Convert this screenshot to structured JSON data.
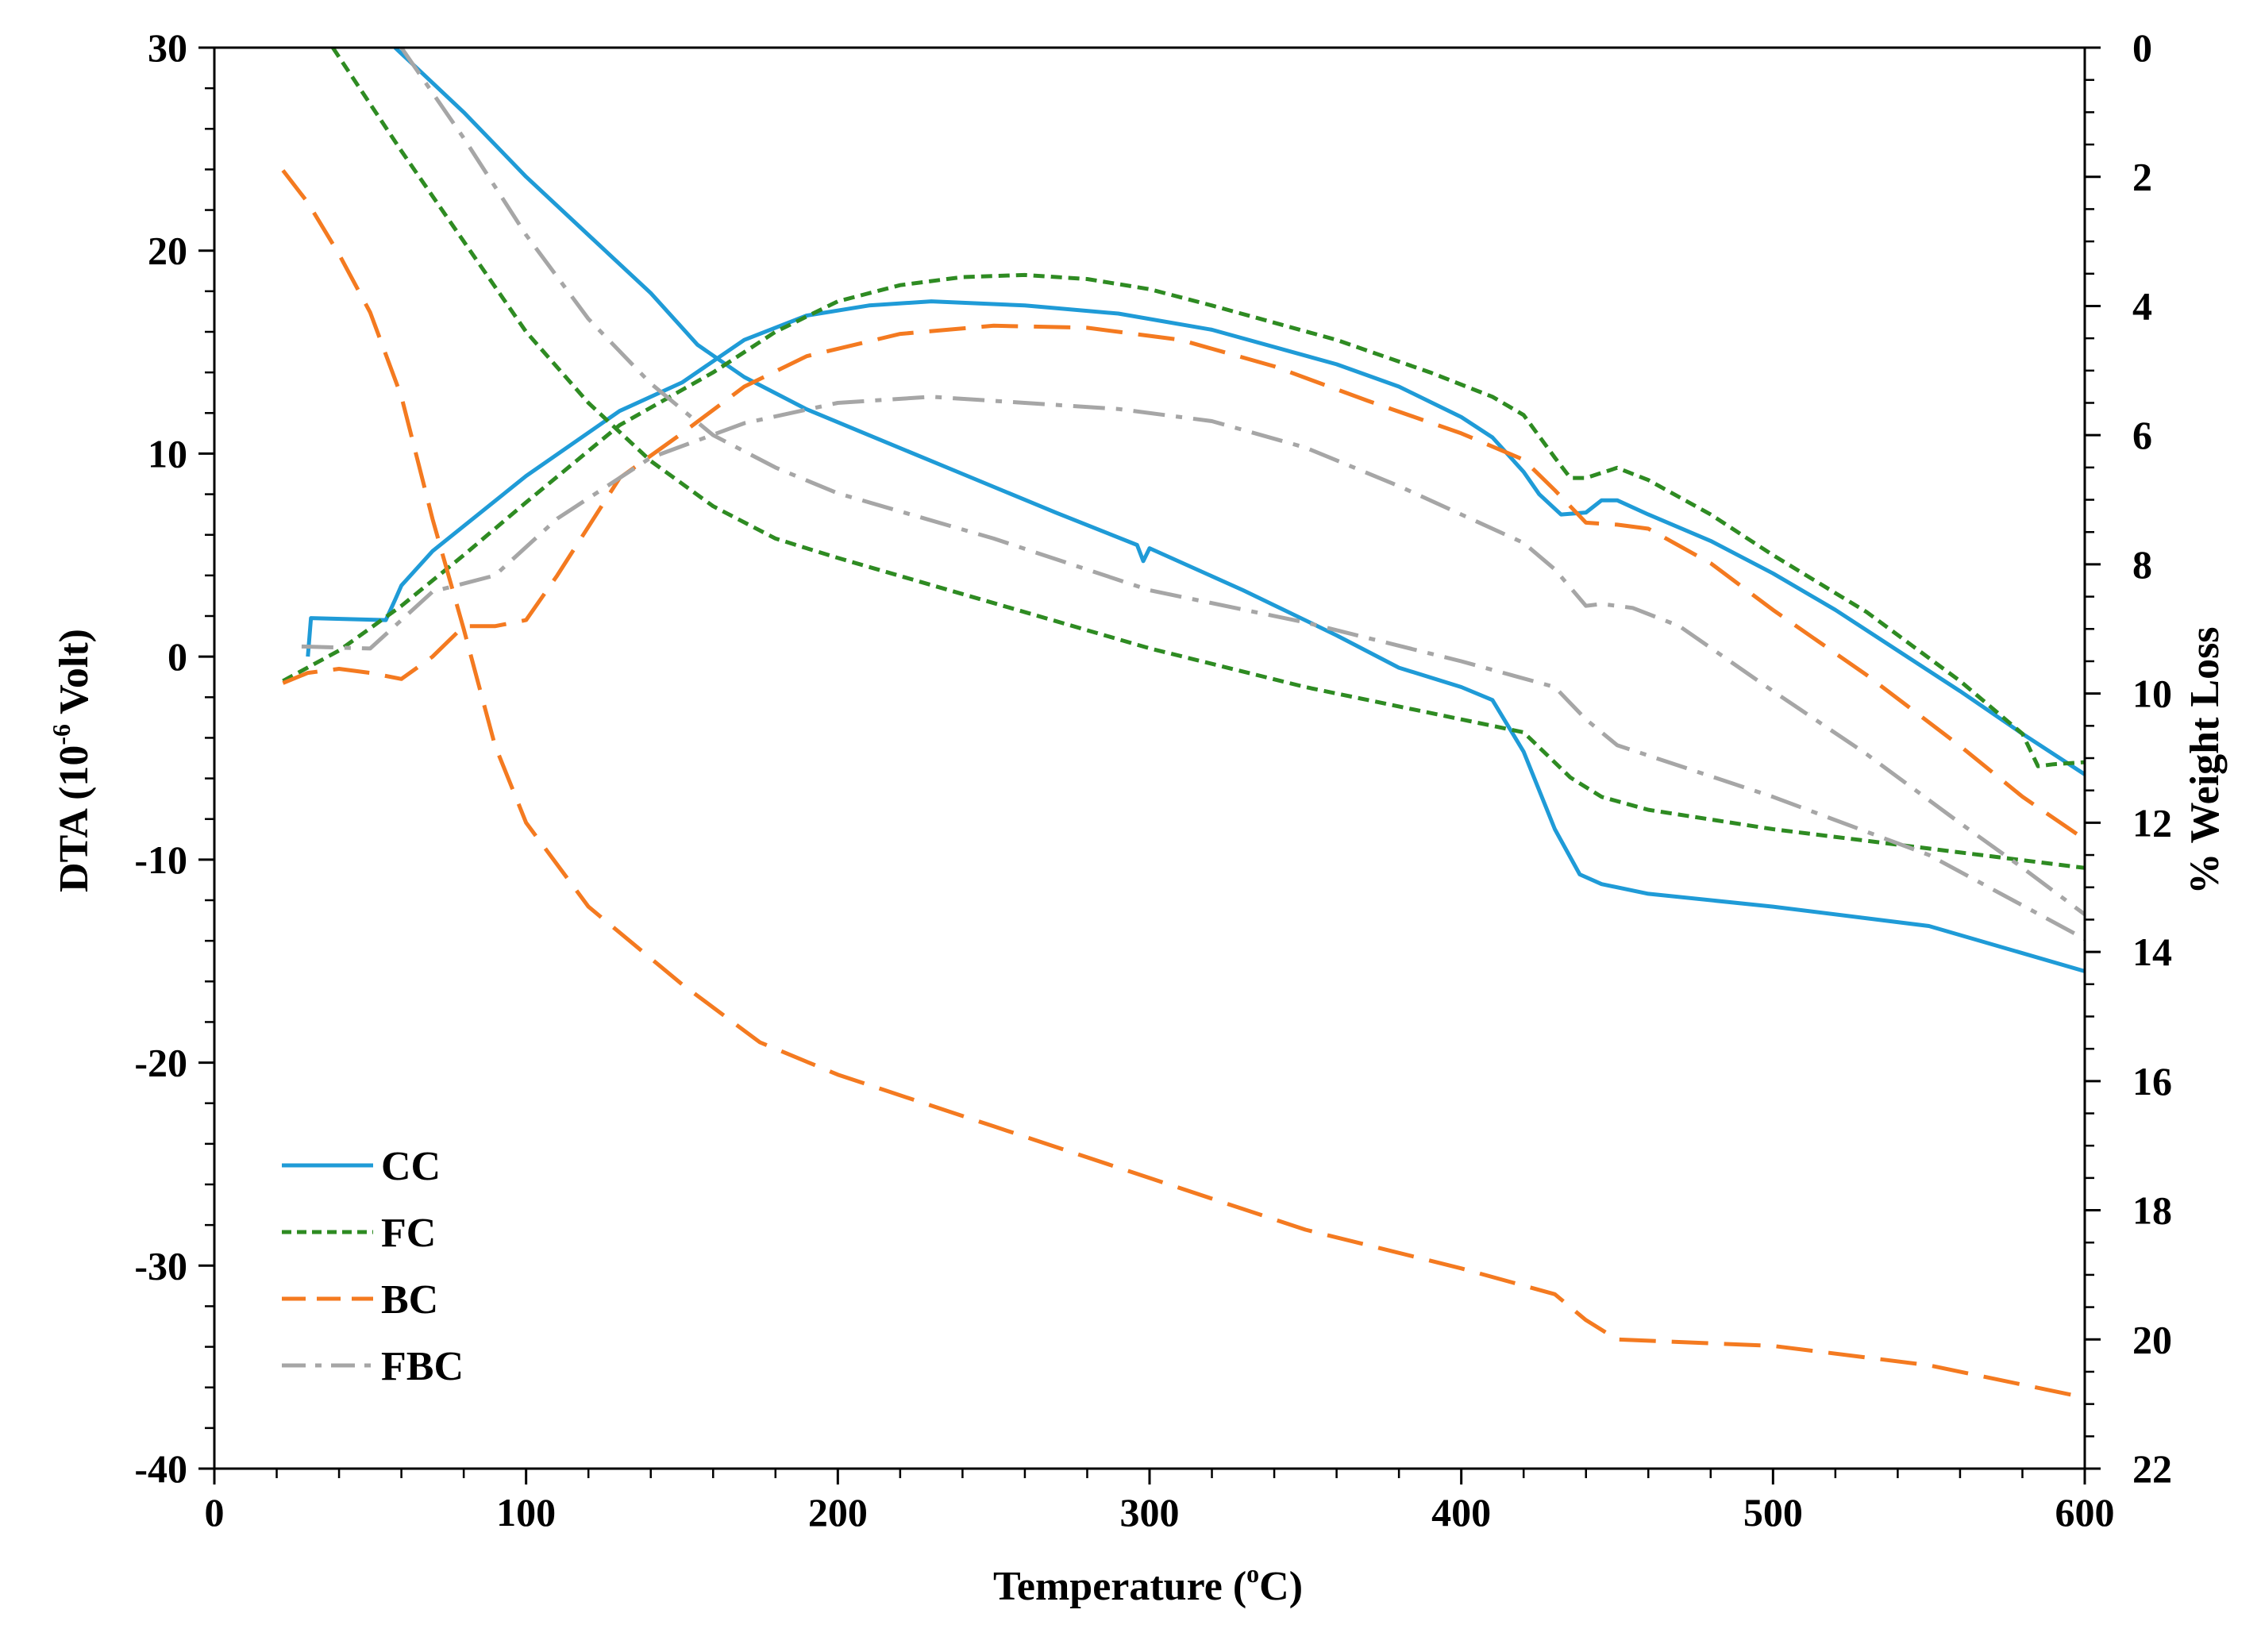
{
  "chart_data": {
    "type": "line",
    "title": "",
    "xlabel": "Temperature (°C)",
    "xlabel_parts": {
      "pre": "Temperature (",
      "sup": "o",
      "post": "C)"
    },
    "ylabel_left": "DTA (10⁻⁶ Volt)",
    "ylabel_left_parts": {
      "pre": "DTA (10",
      "sup": "-6",
      "post": " Volt)"
    },
    "ylabel_right": "% Weight Loss",
    "xlim": [
      0,
      600
    ],
    "ylim_left": [
      -40,
      30
    ],
    "ylim_right": [
      0,
      22
    ],
    "right_axis_inverted": true,
    "x_ticks": [
      "0",
      "100",
      "200",
      "300",
      "400",
      "500",
      "600"
    ],
    "y_left_ticks": [
      "-40",
      "-30",
      "-20",
      "-10",
      "0",
      "10",
      "20",
      "30"
    ],
    "y_right_ticks": [
      "0",
      "2",
      "4",
      "6",
      "8",
      "10",
      "12",
      "14",
      "16",
      "18",
      "20",
      "22"
    ],
    "legend_position": "bottom-left",
    "series": [
      {
        "name": "CC",
        "color": "#1f9bd7",
        "dash": "solid",
        "dta": [
          [
            30,
            0
          ],
          [
            31,
            1.9
          ],
          [
            55,
            1.8
          ],
          [
            58,
            2.8
          ],
          [
            60,
            3.5
          ],
          [
            70,
            5.2
          ],
          [
            100,
            8.9
          ],
          [
            130,
            12.1
          ],
          [
            150,
            13.5
          ],
          [
            170,
            15.6
          ],
          [
            190,
            16.8
          ],
          [
            210,
            17.3
          ],
          [
            230,
            17.5
          ],
          [
            260,
            17.3
          ],
          [
            290,
            16.9
          ],
          [
            320,
            16.1
          ],
          [
            360,
            14.4
          ],
          [
            380,
            13.3
          ],
          [
            400,
            11.8
          ],
          [
            410,
            10.8
          ],
          [
            420,
            9.1
          ],
          [
            425,
            8.0
          ],
          [
            432,
            7.0
          ],
          [
            440,
            7.1
          ],
          [
            445,
            7.7
          ],
          [
            450,
            7.7
          ],
          [
            460,
            7.0
          ],
          [
            480,
            5.7
          ],
          [
            500,
            4.1
          ],
          [
            520,
            2.3
          ],
          [
            540,
            0.3
          ],
          [
            560,
            -1.7
          ],
          [
            580,
            -3.8
          ],
          [
            600,
            -5.8
          ]
        ],
        "weight": [
          [
            58,
            0
          ],
          [
            80,
            1.0
          ],
          [
            100,
            2.0
          ],
          [
            120,
            2.9
          ],
          [
            140,
            3.8
          ],
          [
            155,
            4.6
          ],
          [
            170,
            5.1
          ],
          [
            190,
            5.6
          ],
          [
            210,
            6.0
          ],
          [
            240,
            6.6
          ],
          [
            270,
            7.2
          ],
          [
            296,
            7.7
          ],
          [
            298,
            7.95
          ],
          [
            300,
            7.75
          ],
          [
            330,
            8.4
          ],
          [
            360,
            9.1
          ],
          [
            380,
            9.6
          ],
          [
            400,
            9.9
          ],
          [
            410,
            10.1
          ],
          [
            420,
            10.9
          ],
          [
            430,
            12.1
          ],
          [
            438,
            12.8
          ],
          [
            445,
            12.95
          ],
          [
            460,
            13.1
          ],
          [
            500,
            13.3
          ],
          [
            550,
            13.6
          ],
          [
            600,
            14.3
          ]
        ]
      },
      {
        "name": "FC",
        "color": "#2e8b22",
        "dash": "short",
        "dta": [
          [
            22,
            -1.2
          ],
          [
            40,
            0.3
          ],
          [
            60,
            2.5
          ],
          [
            80,
            5.0
          ],
          [
            100,
            7.6
          ],
          [
            130,
            11.4
          ],
          [
            160,
            14.0
          ],
          [
            180,
            16.0
          ],
          [
            200,
            17.5
          ],
          [
            220,
            18.3
          ],
          [
            240,
            18.7
          ],
          [
            260,
            18.8
          ],
          [
            280,
            18.6
          ],
          [
            300,
            18.1
          ],
          [
            320,
            17.3
          ],
          [
            360,
            15.6
          ],
          [
            390,
            14.0
          ],
          [
            410,
            12.8
          ],
          [
            420,
            11.9
          ],
          [
            430,
            9.8
          ],
          [
            435,
            8.8
          ],
          [
            440,
            8.8
          ],
          [
            450,
            9.3
          ],
          [
            460,
            8.7
          ],
          [
            480,
            7.0
          ],
          [
            500,
            5.0
          ],
          [
            530,
            2.2
          ],
          [
            560,
            -1.2
          ],
          [
            580,
            -3.8
          ],
          [
            585,
            -5.4
          ],
          [
            590,
            -5.3
          ],
          [
            600,
            -5.2
          ]
        ],
        "weight": [
          [
            38,
            0
          ],
          [
            60,
            1.6
          ],
          [
            80,
            3.0
          ],
          [
            100,
            4.4
          ],
          [
            120,
            5.5
          ],
          [
            140,
            6.4
          ],
          [
            160,
            7.1
          ],
          [
            180,
            7.6
          ],
          [
            200,
            7.9
          ],
          [
            250,
            8.6
          ],
          [
            300,
            9.3
          ],
          [
            350,
            9.9
          ],
          [
            400,
            10.4
          ],
          [
            420,
            10.6
          ],
          [
            435,
            11.3
          ],
          [
            445,
            11.6
          ],
          [
            460,
            11.8
          ],
          [
            500,
            12.1
          ],
          [
            550,
            12.4
          ],
          [
            600,
            12.7
          ]
        ]
      },
      {
        "name": "BC",
        "color": "#f47a20",
        "dash": "long",
        "dta": [
          [
            22,
            -1.3
          ],
          [
            30,
            -0.8
          ],
          [
            40,
            -0.6
          ],
          [
            50,
            -0.8
          ],
          [
            60,
            -1.1
          ],
          [
            70,
            0
          ],
          [
            80,
            1.5
          ],
          [
            90,
            1.5
          ],
          [
            100,
            1.8
          ],
          [
            110,
            4.0
          ],
          [
            130,
            8.8
          ],
          [
            150,
            11.0
          ],
          [
            170,
            13.3
          ],
          [
            190,
            14.8
          ],
          [
            220,
            15.9
          ],
          [
            250,
            16.3
          ],
          [
            280,
            16.2
          ],
          [
            310,
            15.6
          ],
          [
            340,
            14.3
          ],
          [
            370,
            12.6
          ],
          [
            400,
            11.0
          ],
          [
            420,
            9.7
          ],
          [
            430,
            8.2
          ],
          [
            440,
            6.6
          ],
          [
            450,
            6.5
          ],
          [
            460,
            6.3
          ],
          [
            480,
            4.6
          ],
          [
            500,
            2.3
          ],
          [
            530,
            -0.9
          ],
          [
            560,
            -4.4
          ],
          [
            580,
            -6.9
          ],
          [
            600,
            -9.0
          ]
        ],
        "weight": [
          [
            22,
            1.9
          ],
          [
            30,
            2.4
          ],
          [
            40,
            3.2
          ],
          [
            50,
            4.1
          ],
          [
            60,
            5.4
          ],
          [
            70,
            7.3
          ],
          [
            80,
            9.0
          ],
          [
            90,
            10.8
          ],
          [
            100,
            12.0
          ],
          [
            120,
            13.3
          ],
          [
            150,
            14.5
          ],
          [
            175,
            15.4
          ],
          [
            200,
            15.9
          ],
          [
            250,
            16.7
          ],
          [
            300,
            17.5
          ],
          [
            350,
            18.3
          ],
          [
            400,
            18.9
          ],
          [
            430,
            19.3
          ],
          [
            440,
            19.7
          ],
          [
            450,
            20.0
          ],
          [
            500,
            20.1
          ],
          [
            550,
            20.4
          ],
          [
            600,
            20.9
          ]
        ]
      },
      {
        "name": "FBC",
        "color": "#a6a6a6",
        "dash": "dashdot",
        "dta": [
          [
            28,
            0.5
          ],
          [
            50,
            0.4
          ],
          [
            70,
            3.2
          ],
          [
            90,
            4.0
          ],
          [
            110,
            6.8
          ],
          [
            140,
            9.8
          ],
          [
            170,
            11.5
          ],
          [
            200,
            12.5
          ],
          [
            230,
            12.8
          ],
          [
            260,
            12.5
          ],
          [
            290,
            12.2
          ],
          [
            320,
            11.6
          ],
          [
            350,
            10.3
          ],
          [
            380,
            8.4
          ],
          [
            400,
            7.0
          ],
          [
            420,
            5.6
          ],
          [
            430,
            4.3
          ],
          [
            440,
            2.5
          ],
          [
            445,
            2.6
          ],
          [
            455,
            2.4
          ],
          [
            470,
            1.5
          ],
          [
            500,
            -1.7
          ],
          [
            530,
            -4.8
          ],
          [
            560,
            -8.2
          ],
          [
            580,
            -10.4
          ],
          [
            600,
            -12.7
          ]
        ],
        "weight": [
          [
            60,
            0
          ],
          [
            80,
            1.4
          ],
          [
            100,
            2.9
          ],
          [
            120,
            4.2
          ],
          [
            140,
            5.2
          ],
          [
            160,
            6.0
          ],
          [
            180,
            6.5
          ],
          [
            200,
            6.9
          ],
          [
            250,
            7.6
          ],
          [
            300,
            8.4
          ],
          [
            350,
            8.9
          ],
          [
            400,
            9.5
          ],
          [
            430,
            9.9
          ],
          [
            440,
            10.4
          ],
          [
            450,
            10.8
          ],
          [
            500,
            11.6
          ],
          [
            550,
            12.5
          ],
          [
            600,
            13.8
          ]
        ]
      }
    ]
  }
}
